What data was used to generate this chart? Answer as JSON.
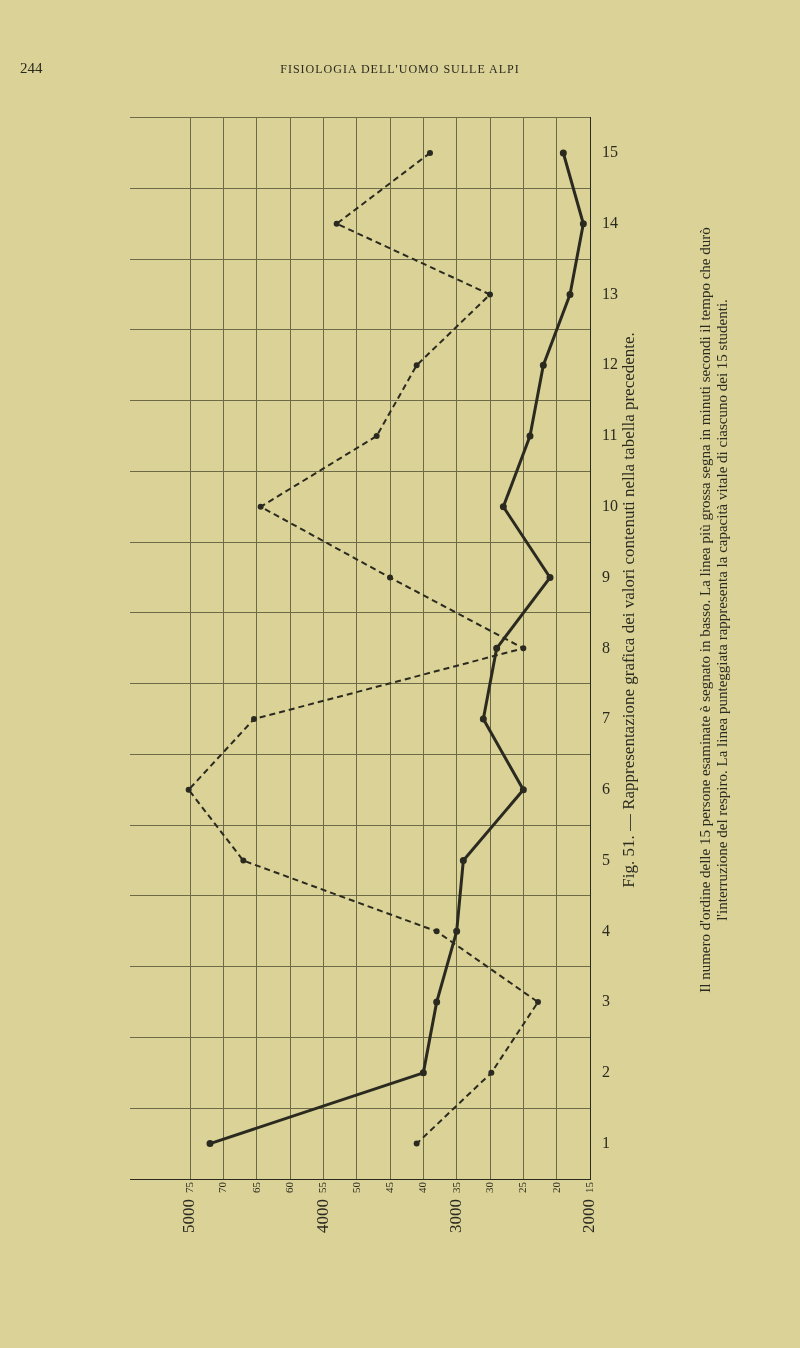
{
  "chart_data": {
    "type": "line",
    "title": "Fig. 51. — Rappresentazione grafica dei valori contenuti nella tabella precedente.",
    "annotations": [
      "244",
      "FISIOLOGIA DELL'UOMO SULLE ALPI",
      "Il numero d'ordine delle 15 persone esaminate è segnato in basso. La linea più grossa segna in minuti secondi il tempo che durò",
      "l'interruzione del respiro. La linea punteggiata rappresenta la capacità vitale di ciascuno dei 15 studenti."
    ],
    "orientation": "horizontal",
    "categories": [
      "15",
      "14",
      "13",
      "12",
      "11",
      "10",
      "9",
      "8",
      "7",
      "6",
      "5",
      "4",
      "3",
      "2",
      "1"
    ],
    "series": [
      {
        "color": "#2b2a20",
        "line_style": "solid",
        "values": [
          19,
          16,
          18,
          22,
          24,
          28,
          21,
          29,
          31,
          25,
          34,
          35,
          38,
          40,
          72
        ]
      },
      {
        "color": "#2b2a20",
        "line_style": "dashed",
        "axis": "x2",
        "values": [
          3200,
          3900,
          2750,
          3300,
          3600,
          4470,
          3500,
          2500,
          4520,
          5010,
          4600,
          3150,
          2390,
          2740,
          3300
        ]
      }
    ],
    "xlim": [
      84,
      15
    ],
    "xticks": [
      75,
      70,
      65,
      60,
      55,
      50,
      45,
      40,
      35,
      30,
      25,
      20,
      15
    ],
    "x2lim": [
      5450,
      2000
    ],
    "x2ticks": [
      5000,
      4000,
      3000,
      2000
    ],
    "grid": true,
    "marker": "circle"
  }
}
